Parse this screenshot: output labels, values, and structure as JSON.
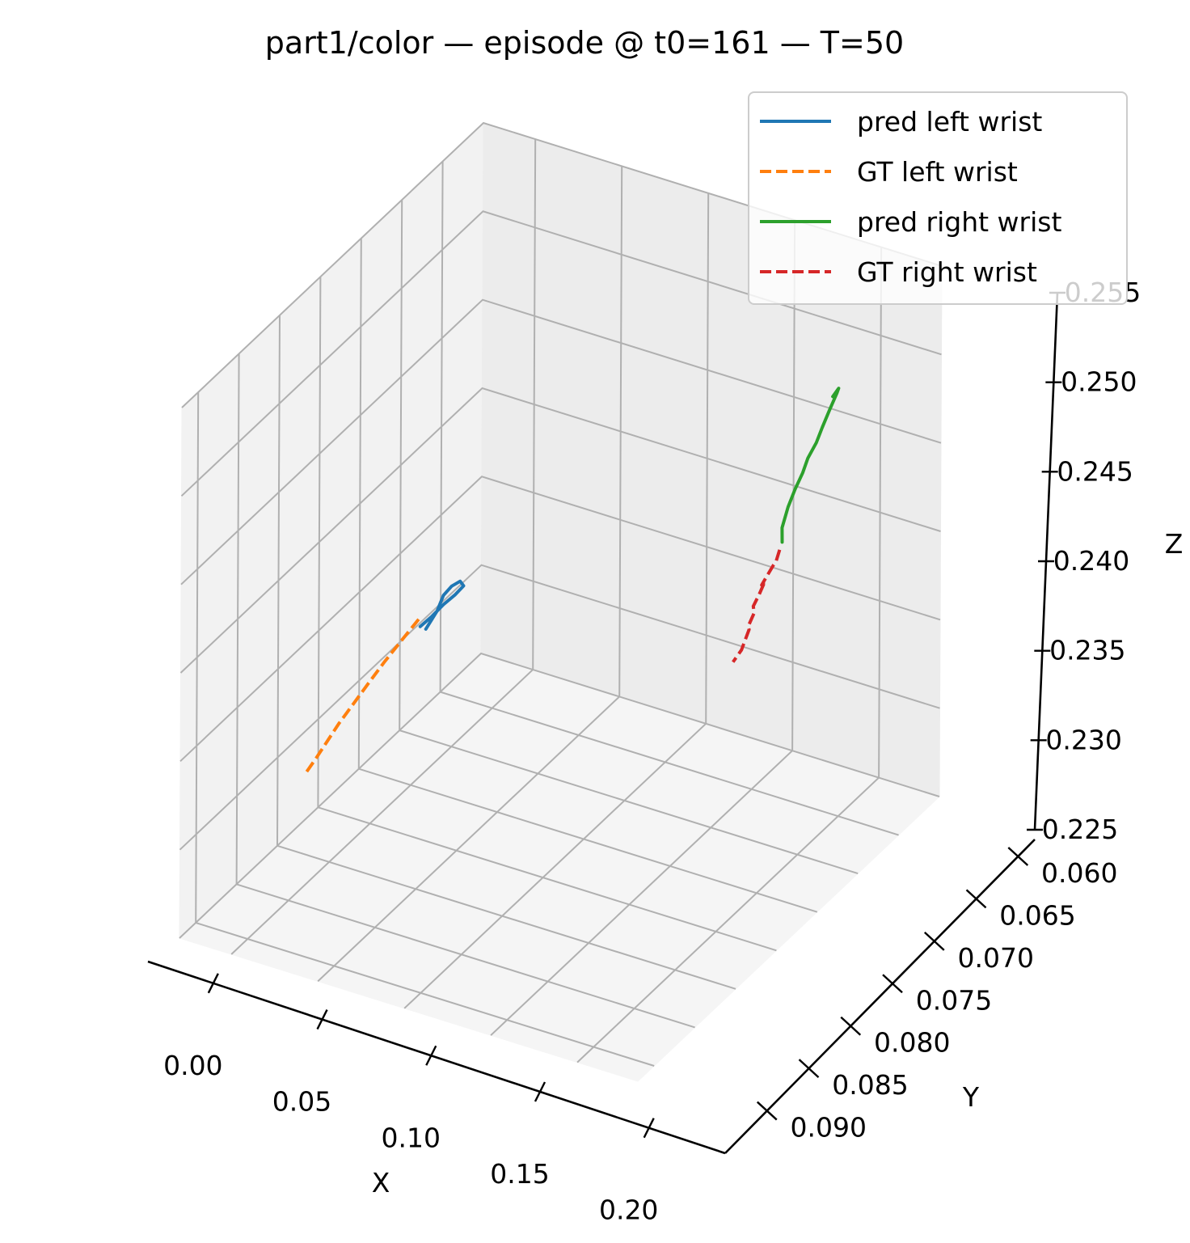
{
  "chart_data": {
    "type": "line",
    "projection": "3d",
    "title": "part1/color — episode @ t0=161 — T=50",
    "xlabel": "X",
    "ylabel": "Y",
    "zlabel": "Z",
    "xlim": [
      -0.03,
      0.235
    ],
    "ylim": [
      0.058,
      0.095
    ],
    "zlim": [
      0.225,
      0.255
    ],
    "xticks": [
      "0.00",
      "0.05",
      "0.10",
      "0.15",
      "0.20"
    ],
    "yticks": [
      "0.060",
      "0.065",
      "0.070",
      "0.075",
      "0.080",
      "0.085",
      "0.090"
    ],
    "zticks": [
      "0.225",
      "0.230",
      "0.235",
      "0.240",
      "0.245",
      "0.250",
      "0.255"
    ],
    "grid": true,
    "legend_position": "top-right",
    "series": [
      {
        "name": "pred left wrist",
        "color": "#1f77b4",
        "style": "solid",
        "points": [
          [
            -0.002,
            0.0822,
            0.2328
          ],
          [
            -0.003,
            0.0838,
            0.2331
          ],
          [
            -0.005,
            0.085,
            0.2334
          ],
          [
            -0.004,
            0.0858,
            0.2336
          ],
          [
            -0.001,
            0.0862,
            0.2338
          ],
          [
            0.001,
            0.0862,
            0.2336
          ],
          [
            -0.001,
            0.0856,
            0.2333
          ],
          [
            -0.004,
            0.0848,
            0.233
          ],
          [
            -0.006,
            0.0838,
            0.2327
          ],
          [
            -0.008,
            0.0828,
            0.2325
          ]
        ]
      },
      {
        "name": "GT left wrist",
        "color": "#ff7f0e",
        "style": "dashed",
        "points": [
          [
            -0.008,
            0.0826,
            0.233
          ],
          [
            -0.01,
            0.0812,
            0.2325
          ],
          [
            -0.013,
            0.0795,
            0.2318
          ],
          [
            -0.015,
            0.078,
            0.2312
          ],
          [
            -0.017,
            0.0766,
            0.2306
          ],
          [
            -0.019,
            0.0752,
            0.23
          ],
          [
            -0.02,
            0.074,
            0.2295
          ],
          [
            -0.021,
            0.0728,
            0.229
          ],
          [
            -0.022,
            0.0718,
            0.2286
          ]
        ]
      },
      {
        "name": "pred right wrist",
        "color": "#2ca02c",
        "style": "solid",
        "points": [
          [
            0.159,
            0.0917,
            0.2385
          ],
          [
            0.158,
            0.0919,
            0.2392
          ],
          [
            0.16,
            0.0922,
            0.2403
          ],
          [
            0.163,
            0.0924,
            0.2413
          ],
          [
            0.166,
            0.0927,
            0.2422
          ],
          [
            0.168,
            0.0929,
            0.243
          ],
          [
            0.171,
            0.0933,
            0.2438
          ],
          [
            0.173,
            0.0936,
            0.2446
          ],
          [
            0.176,
            0.0939,
            0.2456
          ],
          [
            0.179,
            0.0941,
            0.2465
          ],
          [
            0.18,
            0.0941,
            0.2468
          ],
          [
            0.178,
            0.0938,
            0.2464
          ]
        ]
      },
      {
        "name": "GT right wrist",
        "color": "#d62728",
        "style": "dashed",
        "points": [
          [
            0.159,
            0.0914,
            0.2382
          ],
          [
            0.157,
            0.0914,
            0.2375
          ],
          [
            0.156,
            0.0913,
            0.2373
          ],
          [
            0.154,
            0.091,
            0.2368
          ],
          [
            0.152,
            0.0907,
            0.2363
          ],
          [
            0.154,
            0.0907,
            0.2366
          ],
          [
            0.152,
            0.0904,
            0.2359
          ],
          [
            0.15,
            0.0901,
            0.2353
          ],
          [
            0.151,
            0.09,
            0.235
          ],
          [
            0.149,
            0.0897,
            0.2343
          ],
          [
            0.15,
            0.0896,
            0.2342
          ],
          [
            0.148,
            0.0891,
            0.2332
          ],
          [
            0.145,
            0.0887,
            0.2326
          ]
        ]
      }
    ]
  }
}
